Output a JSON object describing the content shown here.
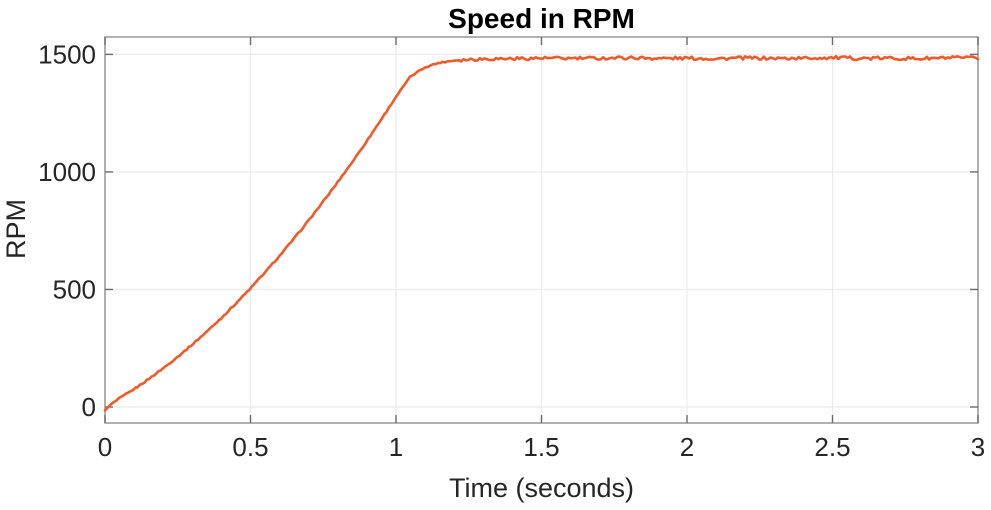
{
  "figure": {
    "background": "#ffffff"
  },
  "chart_data": {
    "type": "line",
    "title": "Speed in RPM",
    "xlabel": "Time (seconds)",
    "ylabel": "RPM",
    "xlim": [
      0,
      3
    ],
    "ylim": [
      -68,
      1574
    ],
    "xticks": [
      0,
      0.5,
      1,
      1.5,
      2,
      2.5,
      3
    ],
    "xtick_labels": [
      "0",
      "0.5",
      "1",
      "1.5",
      "2",
      "2.5",
      "3"
    ],
    "yticks": [
      0,
      500,
      1000,
      1500
    ],
    "ytick_labels": [
      "0",
      "500",
      "1000",
      "1500"
    ],
    "grid": true,
    "box": true,
    "legend_position": "none",
    "colors": {
      "line": "#EF5A29",
      "grid": "#ebebeb",
      "axis": "#8f8f8f",
      "tick": "#6b6b6b",
      "tick_label": "#262626",
      "title": "#000000",
      "background": "#ffffff"
    },
    "series": [
      {
        "name": "Speed",
        "color": "#EF5A29",
        "points": [
          [
            0,
            -15
          ],
          [
            0.02,
            12
          ],
          [
            0.05,
            37
          ],
          [
            0.1,
            76
          ],
          [
            0.15,
            119
          ],
          [
            0.2,
            165
          ],
          [
            0.25,
            214
          ],
          [
            0.3,
            266
          ],
          [
            0.35,
            321
          ],
          [
            0.4,
            379
          ],
          [
            0.45,
            441
          ],
          [
            0.5,
            505
          ],
          [
            0.55,
            573
          ],
          [
            0.6,
            643
          ],
          [
            0.65,
            717
          ],
          [
            0.7,
            794
          ],
          [
            0.75,
            874
          ],
          [
            0.8,
            957
          ],
          [
            0.85,
            1043
          ],
          [
            0.9,
            1132
          ],
          [
            0.95,
            1225
          ],
          [
            1,
            1320
          ],
          [
            1.05,
            1406
          ],
          [
            1.1,
            1446
          ],
          [
            1.15,
            1465
          ],
          [
            1.2,
            1474
          ],
          [
            1.25,
            1479
          ],
          [
            1.3,
            1481
          ],
          [
            1.4,
            1482
          ],
          [
            1.5,
            1484
          ],
          [
            1.6,
            1483
          ],
          [
            1.7,
            1484
          ],
          [
            1.8,
            1486
          ],
          [
            1.9,
            1483
          ],
          [
            2,
            1484
          ],
          [
            2.1,
            1482
          ],
          [
            2.2,
            1485
          ],
          [
            2.3,
            1483
          ],
          [
            2.4,
            1484
          ],
          [
            2.5,
            1486
          ],
          [
            2.6,
            1483
          ],
          [
            2.7,
            1484
          ],
          [
            2.8,
            1482
          ],
          [
            2.9,
            1485
          ],
          [
            3,
            1484
          ]
        ]
      }
    ],
    "noise": {
      "start_t": 1.22,
      "amplitude_rpm": 7,
      "ramp_amplitude_rpm": 3,
      "sample_dt": 0.008
    }
  }
}
